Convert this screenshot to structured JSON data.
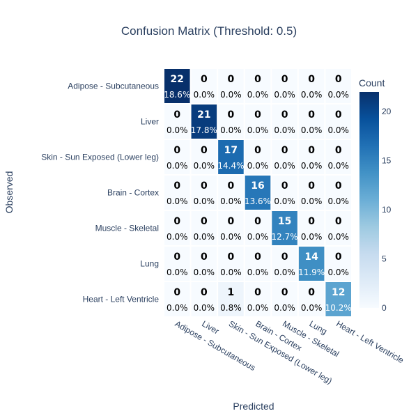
{
  "chart_data": {
    "type": "heatmap",
    "title": "Confusion Matrix (Threshold: 0.5)",
    "xlabel": "Predicted",
    "ylabel": "Observed",
    "categories": [
      "Adipose - Subcutaneous",
      "Liver",
      "Skin - Sun Exposed (Lower leg)",
      "Brain - Cortex",
      "Muscle - Skeletal",
      "Lung",
      "Heart - Left Ventricle"
    ],
    "counts": [
      [
        22,
        0,
        0,
        0,
        0,
        0,
        0
      ],
      [
        0,
        21,
        0,
        0,
        0,
        0,
        0
      ],
      [
        0,
        0,
        17,
        0,
        0,
        0,
        0
      ],
      [
        0,
        0,
        0,
        16,
        0,
        0,
        0
      ],
      [
        0,
        0,
        0,
        0,
        15,
        0,
        0
      ],
      [
        0,
        0,
        0,
        0,
        0,
        14,
        0
      ],
      [
        0,
        0,
        1,
        0,
        0,
        0,
        12
      ]
    ],
    "percent_labels": [
      [
        "18.6%",
        "0.0%",
        "0.0%",
        "0.0%",
        "0.0%",
        "0.0%",
        "0.0%"
      ],
      [
        "0.0%",
        "17.8%",
        "0.0%",
        "0.0%",
        "0.0%",
        "0.0%",
        "0.0%"
      ],
      [
        "0.0%",
        "0.0%",
        "14.4%",
        "0.0%",
        "0.0%",
        "0.0%",
        "0.0%"
      ],
      [
        "0.0%",
        "0.0%",
        "0.0%",
        "13.6%",
        "0.0%",
        "0.0%",
        "0.0%"
      ],
      [
        "0.0%",
        "0.0%",
        "0.0%",
        "0.0%",
        "12.7%",
        "0.0%",
        "0.0%"
      ],
      [
        "0.0%",
        "0.0%",
        "0.0%",
        "0.0%",
        "0.0%",
        "11.9%",
        "0.0%"
      ],
      [
        "0.0%",
        "0.0%",
        "0.8%",
        "0.0%",
        "0.0%",
        "0.0%",
        "10.2%"
      ]
    ],
    "colorbar": {
      "title": "Count",
      "range": [
        0,
        22
      ],
      "ticks": [
        "0",
        "5",
        "10",
        "15",
        "20"
      ],
      "colorscale": "Blues"
    }
  }
}
